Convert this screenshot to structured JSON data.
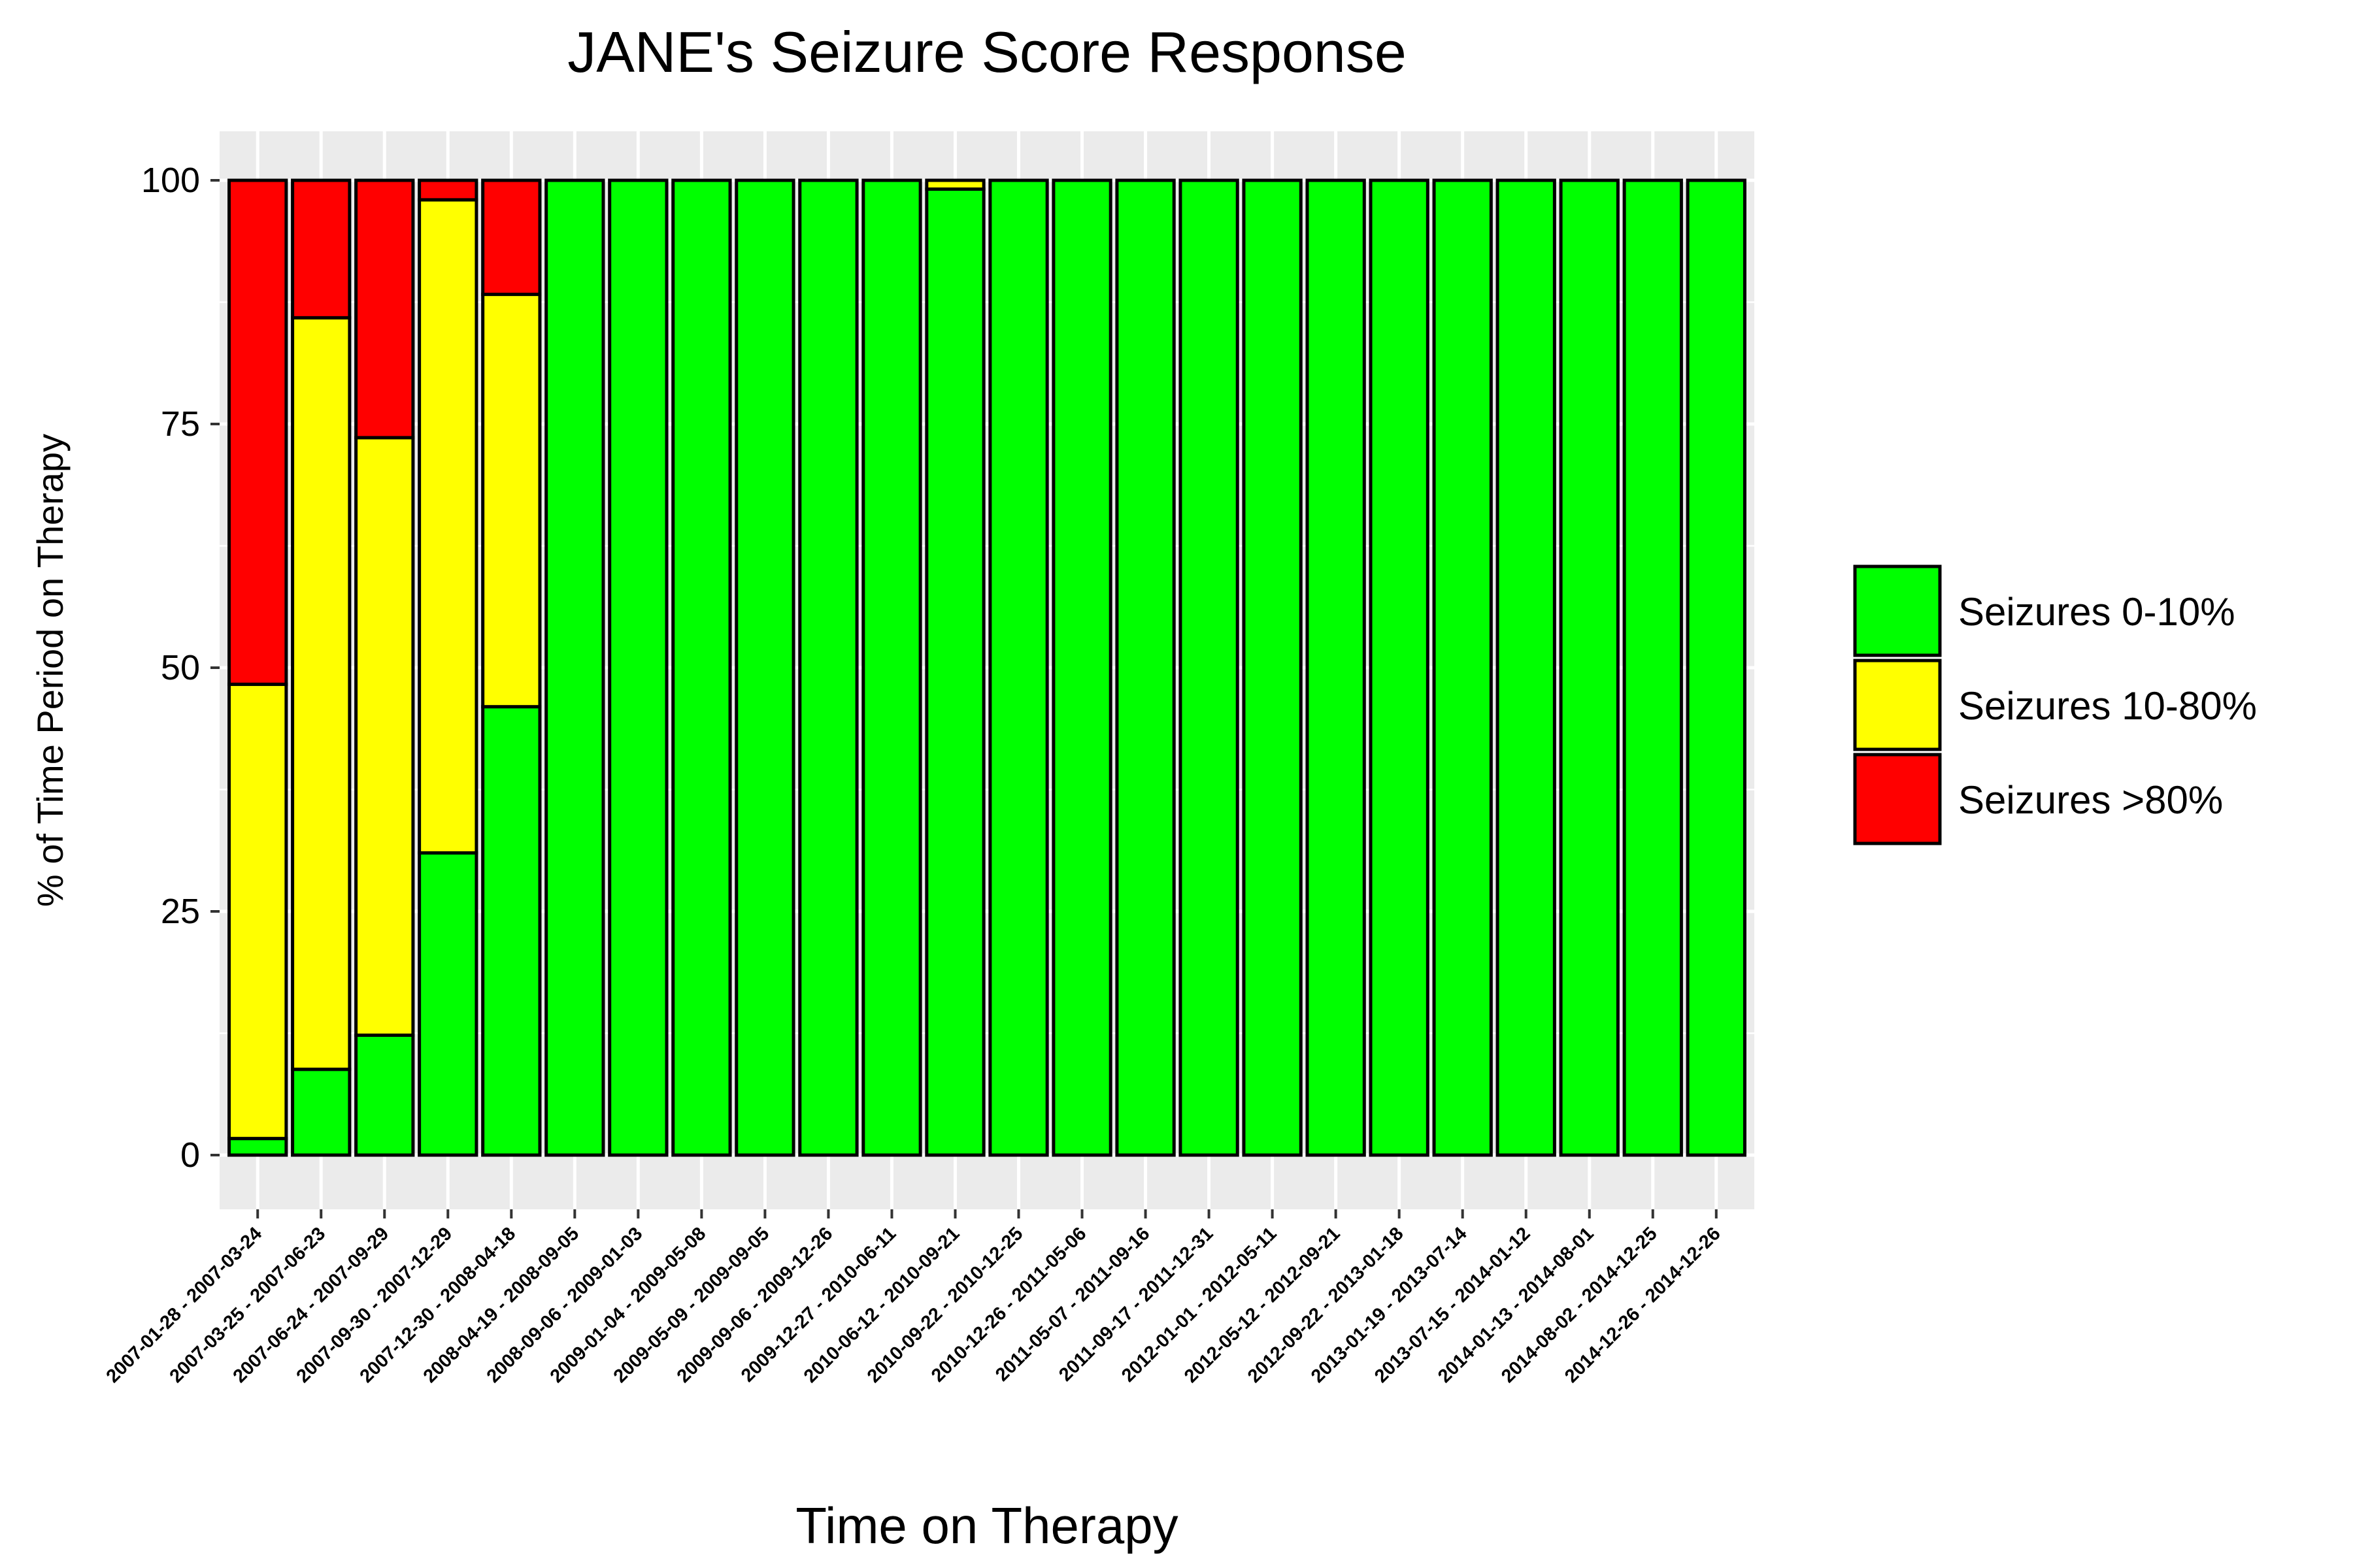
{
  "chart_data": {
    "type": "bar",
    "stacked": true,
    "title": "JANE's Seizure Score Response",
    "xlabel": "Time on Therapy",
    "ylabel": "% of Time Period on Therapy",
    "ylim": [
      0,
      100
    ],
    "yticks": [
      0,
      25,
      50,
      75,
      100
    ],
    "grid": true,
    "legend_position": "right",
    "categories": [
      "2007-01-28 - 2007-03-24",
      "2007-03-25 - 2007-06-23",
      "2007-06-24 - 2007-09-29",
      "2007-09-30 - 2007-12-29",
      "2007-12-30 - 2008-04-18",
      "2008-04-19 - 2008-09-05",
      "2008-09-06 - 2009-01-03",
      "2009-01-04 - 2009-05-08",
      "2009-05-09 - 2009-09-05",
      "2009-09-06 - 2009-12-26",
      "2009-12-27 - 2010-06-11",
      "2010-06-12 - 2010-09-21",
      "2010-09-22 - 2010-12-25",
      "2010-12-26 - 2011-05-06",
      "2011-05-07 - 2011-09-16",
      "2011-09-17 - 2011-12-31",
      "2012-01-01 - 2012-05-11",
      "2012-05-12 - 2012-09-21",
      "2012-09-22 - 2013-01-18",
      "2013-01-19 - 2013-07-14",
      "2013-07-15 - 2014-01-12",
      "2014-01-13 - 2014-08-01",
      "2014-08-02 - 2014-12-25",
      "2014-12-26 - 2014-12-26"
    ],
    "series": [
      {
        "name": "Seizures 0-10%",
        "color": "#00ff00",
        "values": [
          1.7,
          8.8,
          12.3,
          31,
          46,
          100,
          100,
          100,
          100,
          100,
          100,
          99.1,
          100,
          100,
          100,
          100,
          100,
          100,
          100,
          100,
          100,
          100,
          100,
          100
        ]
      },
      {
        "name": "Seizures 10-80%",
        "color": "#ffff00",
        "values": [
          46.6,
          77.1,
          61.3,
          67,
          42.3,
          0,
          0,
          0,
          0,
          0,
          0,
          0.9,
          0,
          0,
          0,
          0,
          0,
          0,
          0,
          0,
          0,
          0,
          0,
          0
        ]
      },
      {
        "name": "Seizures >80%",
        "color": "#ff0000",
        "values": [
          51.7,
          14.1,
          26.4,
          2,
          11.7,
          0,
          0,
          0,
          0,
          0,
          0,
          0,
          0,
          0,
          0,
          0,
          0,
          0,
          0,
          0,
          0,
          0,
          0,
          0
        ]
      }
    ]
  }
}
